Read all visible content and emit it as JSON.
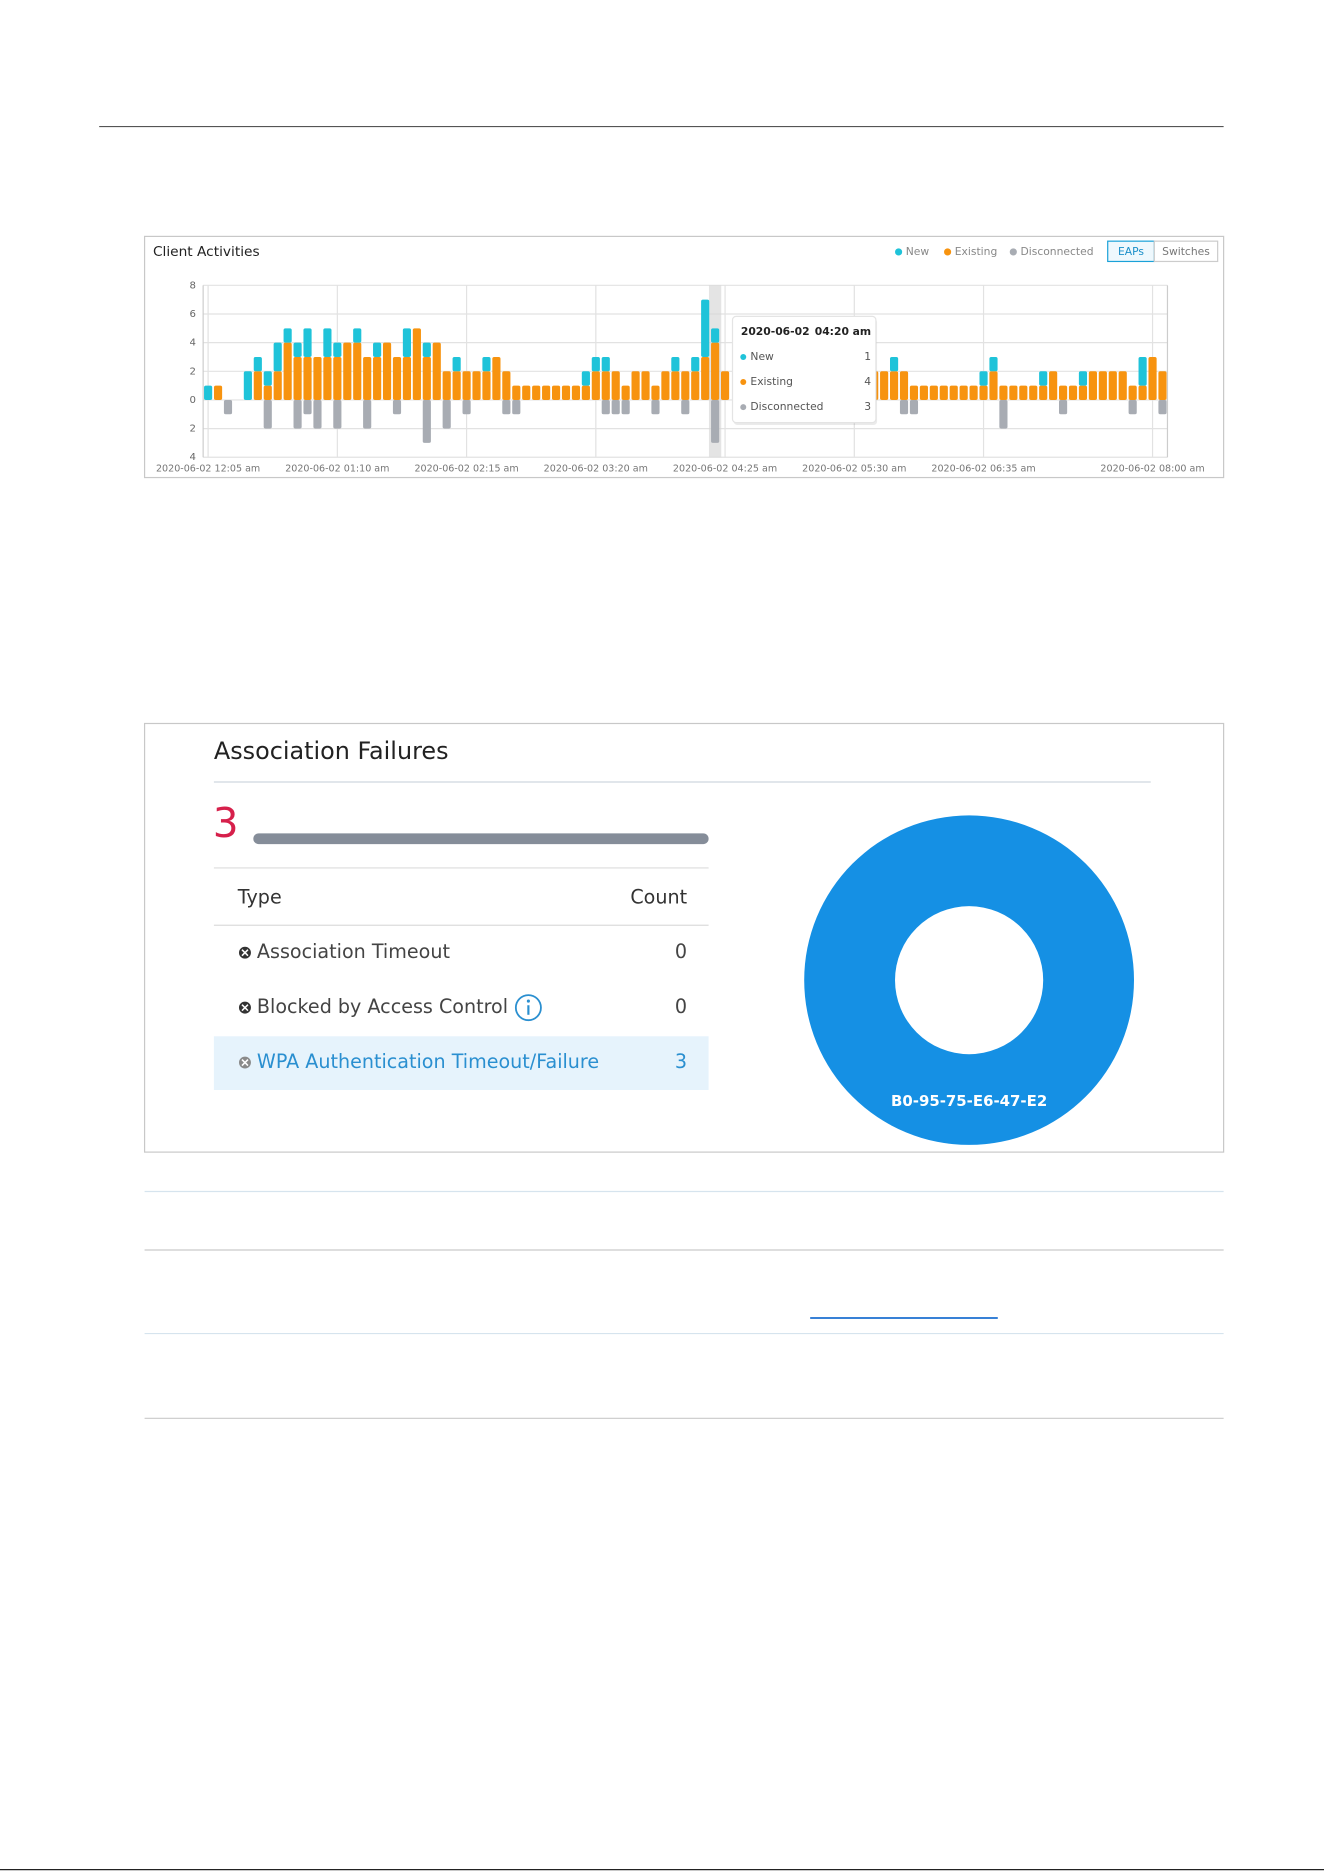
{
  "chart_data": [
    {
      "type": "bar",
      "stacked": true,
      "title": "Client Activities",
      "categories": [
        "2020-06-02 12:05 am",
        null,
        null,
        null,
        null,
        null,
        null,
        null,
        null,
        null,
        null,
        null,
        null,
        "2020-06-02 01:10 am",
        null,
        null,
        null,
        null,
        null,
        null,
        null,
        null,
        null,
        null,
        null,
        null,
        "2020-06-02 02:15 am",
        null,
        null,
        null,
        null,
        null,
        null,
        null,
        null,
        null,
        null,
        null,
        null,
        "2020-06-02 03:20 am",
        null,
        null,
        null,
        null,
        null,
        null,
        null,
        null,
        null,
        null,
        null,
        null,
        "2020-06-02 04:25 am",
        null,
        null,
        null,
        null,
        null,
        null,
        null,
        null,
        null,
        null,
        null,
        null,
        "2020-06-02 05:30 am",
        null,
        null,
        null,
        null,
        null,
        null,
        null,
        null,
        null,
        null,
        null,
        null,
        "2020-06-02 06:35 am",
        null,
        null,
        null,
        null,
        null,
        null,
        null,
        null,
        null,
        null,
        null,
        null,
        null,
        null,
        null,
        null,
        "2020-06-02 08:00 am",
        null
      ],
      "series": [
        {
          "name": "New",
          "color": "#1fc3d9",
          "values": [
            1,
            0,
            0,
            0,
            2,
            1,
            1,
            2,
            1,
            1,
            2,
            0,
            2,
            1,
            0,
            1,
            0,
            1,
            0,
            0,
            2,
            0,
            1,
            0,
            0,
            1,
            0,
            0,
            1,
            0,
            0,
            0,
            0,
            0,
            0,
            0,
            0,
            0,
            1,
            1,
            1,
            0,
            0,
            0,
            0,
            0,
            0,
            1,
            0,
            1,
            4,
            1,
            0,
            null,
            null,
            null,
            null,
            null,
            null,
            null,
            null,
            null,
            null,
            null,
            null,
            null,
            null,
            0,
            0,
            1,
            0,
            0,
            0,
            0,
            0,
            0,
            0,
            0,
            1,
            1,
            0,
            0,
            0,
            0,
            1,
            0,
            0,
            0,
            1,
            0,
            0,
            0,
            0,
            0,
            2,
            0,
            0
          ]
        },
        {
          "name": "Existing",
          "color": "#f7930f",
          "values": [
            0,
            1,
            0,
            0,
            0,
            2,
            1,
            2,
            4,
            3,
            3,
            3,
            3,
            3,
            4,
            4,
            3,
            3,
            4,
            3,
            3,
            5,
            3,
            4,
            2,
            2,
            2,
            2,
            2,
            3,
            2,
            1,
            1,
            1,
            1,
            1,
            1,
            1,
            1,
            2,
            2,
            2,
            1,
            2,
            2,
            1,
            2,
            2,
            2,
            2,
            3,
            4,
            2,
            null,
            null,
            null,
            null,
            null,
            null,
            null,
            null,
            null,
            null,
            null,
            null,
            null,
            null,
            2,
            2,
            2,
            2,
            1,
            1,
            1,
            1,
            1,
            1,
            1,
            1,
            2,
            1,
            1,
            1,
            1,
            1,
            2,
            1,
            1,
            1,
            2,
            2,
            2,
            2,
            1,
            1,
            3,
            2
          ]
        },
        {
          "name": "Disconnected",
          "color": "#a8acb3",
          "values": [
            0,
            0,
            -1,
            0,
            0,
            0,
            -2,
            0,
            0,
            -2,
            -1,
            -2,
            0,
            -2,
            0,
            0,
            -2,
            0,
            0,
            -1,
            0,
            0,
            -3,
            0,
            -2,
            0,
            -1,
            0,
            0,
            0,
            -1,
            -1,
            0,
            0,
            0,
            0,
            0,
            0,
            0,
            0,
            -1,
            -1,
            -1,
            0,
            0,
            -1,
            0,
            0,
            -1,
            0,
            0,
            -3,
            0,
            null,
            null,
            null,
            null,
            null,
            null,
            null,
            null,
            null,
            null,
            null,
            null,
            null,
            null,
            0,
            0,
            0,
            -1,
            -1,
            0,
            0,
            0,
            0,
            0,
            0,
            0,
            0,
            -2,
            0,
            0,
            0,
            0,
            0,
            -1,
            0,
            0,
            0,
            0,
            0,
            0,
            -1,
            0,
            0,
            -1
          ]
        }
      ],
      "ylim": [
        -4,
        8
      ],
      "yticks": [
        8,
        6,
        4,
        2,
        0,
        {
          "value": -2,
          "label": "2"
        },
        {
          "value": -4,
          "label": "4"
        }
      ],
      "grid": true,
      "legend": "top-right",
      "toggle": [
        "EAPs",
        "Switches"
      ],
      "toggle_active": 0,
      "tooltip": {
        "date": "2020-06-02",
        "time": "04:20 am",
        "rows": [
          {
            "name": "New",
            "value": 1
          },
          {
            "name": "Existing",
            "value": 4
          },
          {
            "name": "Disconnected",
            "value": 3
          }
        ]
      }
    },
    {
      "type": "pie",
      "categories": [
        "B0-95-75-E6-47-E2"
      ],
      "values": [
        3
      ],
      "color": "#1590e4"
    }
  ],
  "association_failures": {
    "title": "Association Failures",
    "total": 3,
    "columns": [
      "Type",
      "Count"
    ],
    "rows": [
      {
        "type": "Association Timeout",
        "count": 0
      },
      {
        "type": "Blocked by Access Control",
        "count": 0
      },
      {
        "type": "WPA Authentication Timeout/Failure",
        "count": 3
      }
    ],
    "selected_row": 2
  }
}
